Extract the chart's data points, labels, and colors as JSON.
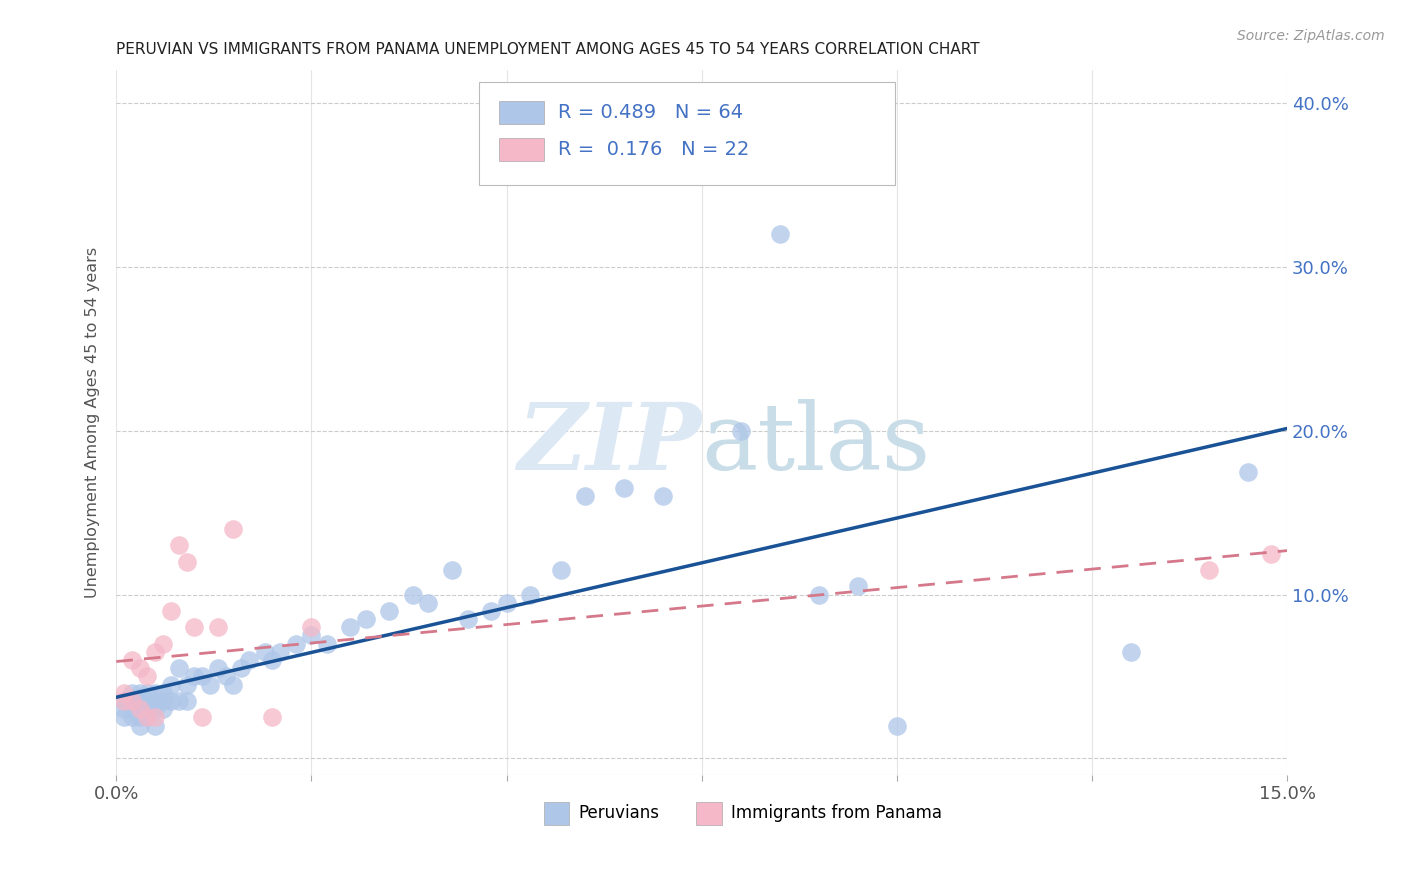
{
  "title": "PERUVIAN VS IMMIGRANTS FROM PANAMA UNEMPLOYMENT AMONG AGES 45 TO 54 YEARS CORRELATION CHART",
  "source": "Source: ZipAtlas.com",
  "ylabel": "Unemployment Among Ages 45 to 54 years",
  "xlim": [
    0.0,
    0.15
  ],
  "ylim": [
    -0.01,
    0.42
  ],
  "peruvian_R": "0.489",
  "peruvian_N": "64",
  "panama_R": "0.176",
  "panama_N": "22",
  "peruvian_color": "#aec6e8",
  "panama_color": "#f4b8c8",
  "peruvian_line_color": "#1a5296",
  "panama_line_color": "#d4788a",
  "peruvian_x": [
    0.001,
    0.001,
    0.001,
    0.002,
    0.002,
    0.002,
    0.002,
    0.003,
    0.003,
    0.003,
    0.003,
    0.003,
    0.004,
    0.004,
    0.004,
    0.004,
    0.005,
    0.005,
    0.005,
    0.005,
    0.006,
    0.006,
    0.006,
    0.007,
    0.007,
    0.008,
    0.008,
    0.009,
    0.009,
    0.01,
    0.011,
    0.012,
    0.013,
    0.014,
    0.015,
    0.016,
    0.017,
    0.019,
    0.02,
    0.021,
    0.023,
    0.025,
    0.027,
    0.03,
    0.032,
    0.035,
    0.038,
    0.04,
    0.043,
    0.045,
    0.048,
    0.05,
    0.053,
    0.057,
    0.06,
    0.065,
    0.07,
    0.08,
    0.085,
    0.09,
    0.095,
    0.1,
    0.13,
    0.145
  ],
  "peruvian_y": [
    0.035,
    0.03,
    0.025,
    0.04,
    0.035,
    0.03,
    0.025,
    0.04,
    0.035,
    0.03,
    0.025,
    0.02,
    0.04,
    0.035,
    0.03,
    0.025,
    0.04,
    0.035,
    0.03,
    0.02,
    0.04,
    0.035,
    0.03,
    0.045,
    0.035,
    0.055,
    0.035,
    0.045,
    0.035,
    0.05,
    0.05,
    0.045,
    0.055,
    0.05,
    0.045,
    0.055,
    0.06,
    0.065,
    0.06,
    0.065,
    0.07,
    0.075,
    0.07,
    0.08,
    0.085,
    0.09,
    0.1,
    0.095,
    0.115,
    0.085,
    0.09,
    0.095,
    0.1,
    0.115,
    0.16,
    0.165,
    0.16,
    0.2,
    0.32,
    0.1,
    0.105,
    0.02,
    0.065,
    0.175
  ],
  "panama_x": [
    0.001,
    0.001,
    0.002,
    0.002,
    0.003,
    0.003,
    0.004,
    0.004,
    0.005,
    0.005,
    0.006,
    0.007,
    0.008,
    0.009,
    0.01,
    0.011,
    0.013,
    0.015,
    0.02,
    0.025,
    0.14,
    0.148
  ],
  "panama_y": [
    0.04,
    0.035,
    0.06,
    0.035,
    0.055,
    0.03,
    0.05,
    0.025,
    0.065,
    0.025,
    0.07,
    0.09,
    0.13,
    0.12,
    0.08,
    0.025,
    0.08,
    0.14,
    0.025,
    0.08,
    0.115,
    0.125
  ]
}
